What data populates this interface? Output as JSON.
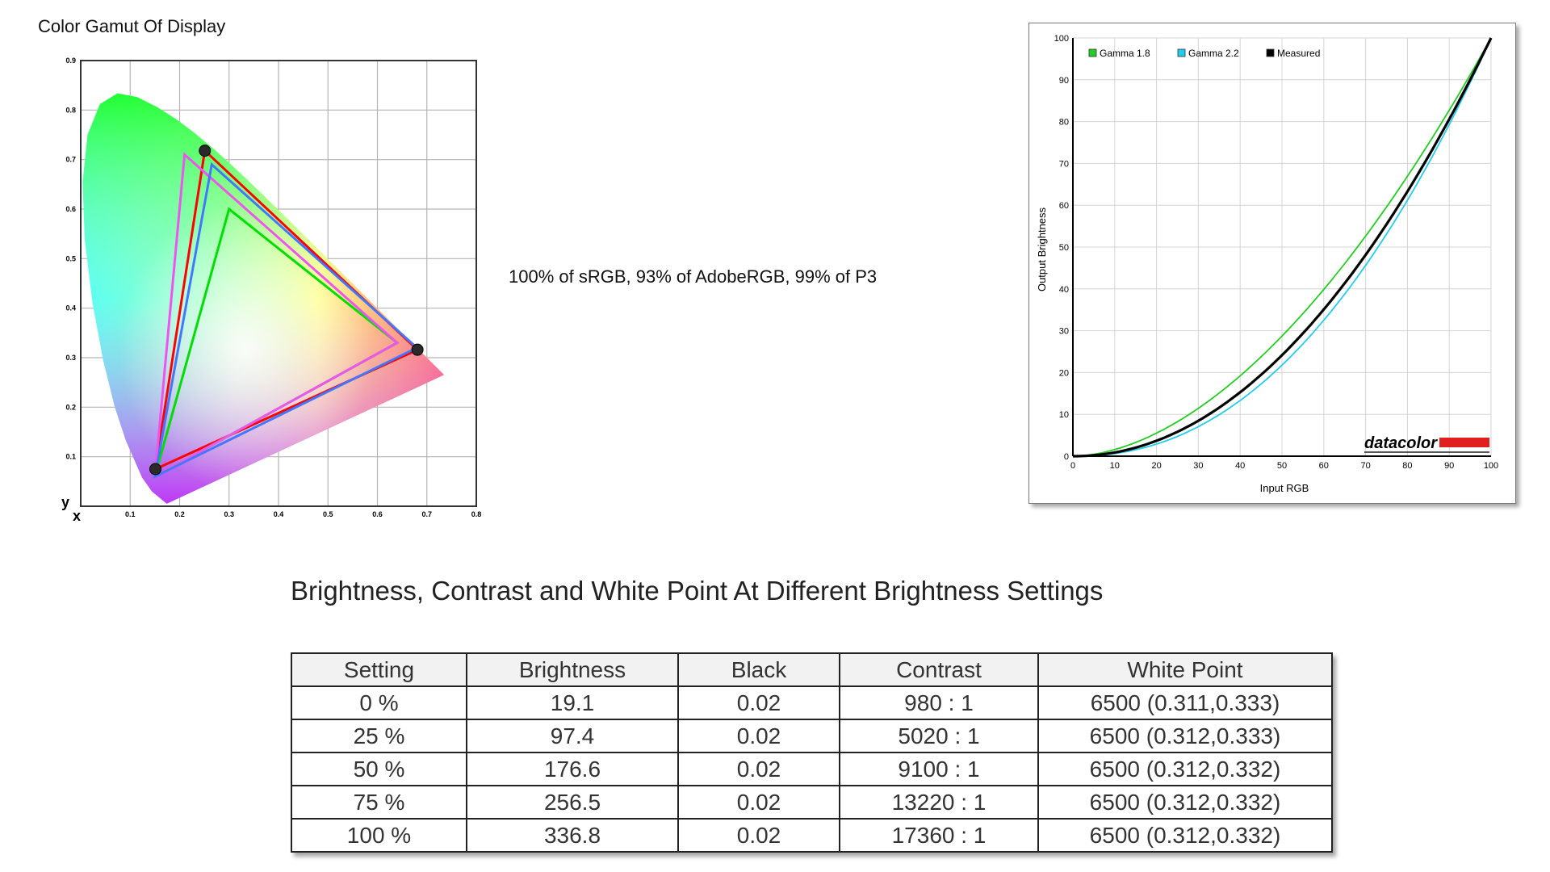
{
  "gamut": {
    "title": "Color Gamut Of Display",
    "summary": "100% of sRGB, 93% of AdobeRGB, 99% of P3",
    "x_label": "x",
    "y_label": "y",
    "x_ticks": [
      "0.1",
      "0.2",
      "0.3",
      "0.4",
      "0.5",
      "0.6",
      "0.7",
      "0.8"
    ],
    "y_ticks": [
      "0.1",
      "0.2",
      "0.3",
      "0.4",
      "0.5",
      "0.6",
      "0.7",
      "0.8",
      "0.9"
    ]
  },
  "chart_data": [
    {
      "type": "scatter",
      "title": "Color Gamut Of Display",
      "xlabel": "x",
      "ylabel": "y",
      "xlim": [
        0,
        0.8
      ],
      "ylim": [
        0,
        0.9
      ],
      "grid": true,
      "series": [
        {
          "color": "#ff0000",
          "points": [
            [
              0.681,
              0.316
            ],
            [
              0.251,
              0.718
            ],
            [
              0.151,
              0.075
            ]
          ]
        },
        {
          "color": "#00dd00",
          "points": [
            [
              0.64,
              0.33
            ],
            [
              0.3,
              0.6
            ],
            [
              0.15,
              0.06
            ]
          ]
        },
        {
          "color": "#ee55ee",
          "points": [
            [
              0.64,
              0.33
            ],
            [
              0.21,
              0.71
            ],
            [
              0.15,
              0.06
            ]
          ]
        },
        {
          "color": "#4477ff",
          "points": [
            [
              0.68,
              0.32
            ],
            [
              0.265,
              0.69
            ],
            [
              0.15,
              0.06
            ]
          ]
        }
      ],
      "measured_points": [
        [
          0.681,
          0.316
        ],
        [
          0.251,
          0.718
        ],
        [
          0.151,
          0.075
        ]
      ]
    },
    {
      "type": "line",
      "xlabel": "Input RGB",
      "ylabel": "Output Brightness",
      "xlim": [
        0,
        100
      ],
      "ylim": [
        0,
        100
      ],
      "grid": true,
      "legend_position": "top-left",
      "x_ticks": [
        "0",
        "10",
        "20",
        "30",
        "40",
        "50",
        "60",
        "70",
        "80",
        "90",
        "100"
      ],
      "y_ticks": [
        "0",
        "10",
        "20",
        "30",
        "40",
        "50",
        "60",
        "70",
        "80",
        "90",
        "100"
      ],
      "series": [
        {
          "name": "Gamma 1.8",
          "color": "#22cc22",
          "gamma": 1.8
        },
        {
          "name": "Gamma 2.2",
          "color": "#22ccee",
          "gamma": 2.2
        },
        {
          "name": "Measured",
          "color": "#000000",
          "gamma": 2.05
        }
      ],
      "watermark": "datacolor"
    }
  ],
  "table": {
    "title": "Brightness, Contrast and White Point At Different Brightness Settings",
    "headers": [
      "Setting",
      "Brightness",
      "Black",
      "Contrast",
      "White Point"
    ],
    "rows": [
      [
        "0 %",
        "19.1",
        "0.02",
        "980 : 1",
        "6500 (0.311,0.333)"
      ],
      [
        "25 %",
        "97.4",
        "0.02",
        "5020 : 1",
        "6500 (0.312,0.333)"
      ],
      [
        "50 %",
        "176.6",
        "0.02",
        "9100 : 1",
        "6500 (0.312,0.332)"
      ],
      [
        "75 %",
        "256.5",
        "0.02",
        "13220 : 1",
        "6500 (0.312,0.332)"
      ],
      [
        "100 %",
        "336.8",
        "0.02",
        "17360 : 1",
        "6500 (0.312,0.332)"
      ]
    ]
  }
}
